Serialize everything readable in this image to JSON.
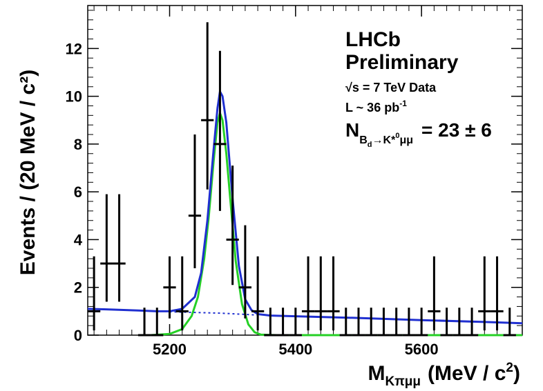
{
  "chart_data": {
    "type": "scatter",
    "title": "",
    "xlabel": {
      "main": "M",
      "sub": "Kπμμ",
      "unit": "(MeV / c",
      "unit_sup": "2",
      "unit_close": ")"
    },
    "ylabel": "Events / (20 MeV / c²)",
    "xlim": [
      5070,
      5760
    ],
    "ylim": [
      0,
      13.8
    ],
    "xticks": [
      "5200",
      "5400",
      "5600"
    ],
    "yticks": [
      "0",
      "2",
      "4",
      "6",
      "8",
      "10",
      "12"
    ],
    "annotations": {
      "experiment": "LHCb",
      "status": "Preliminary",
      "energy": "√s = 7 TeV Data",
      "lumi_prefix": "L ~ 36 pb",
      "lumi_sup": "-1",
      "yield_label": "N",
      "yield_sub": "B",
      "yield_subsub": "d",
      "yield_sub_rest": "→K*",
      "yield_sub_sup": "0",
      "yield_sub_end": "μμ",
      "yield_value": "= 23 ± 6"
    },
    "series": [
      {
        "type": "errorbar",
        "color": "#000000",
        "x": [
          5080,
          5100,
          5120,
          5160,
          5180,
          5200,
          5220,
          5240,
          5260,
          5280,
          5300,
          5320,
          5340,
          5360,
          5380,
          5400,
          5420,
          5440,
          5460,
          5480,
          5500,
          5520,
          5540,
          5560,
          5580,
          5600,
          5620,
          5640,
          5660,
          5680,
          5700,
          5720,
          5740
        ],
        "y": [
          1,
          3,
          3,
          0,
          0,
          2,
          1,
          5,
          9,
          8,
          4,
          2,
          1,
          0,
          0,
          0,
          1,
          1,
          1,
          0,
          0,
          0,
          0,
          0,
          0,
          0,
          1,
          0,
          0,
          0,
          1,
          1,
          0
        ],
        "yerr_up": [
          2.3,
          2.9,
          2.9,
          1.15,
          1.15,
          1.3,
          2.3,
          3.4,
          4.1,
          3.9,
          3.1,
          2.6,
          2.3,
          1.15,
          1.15,
          1.15,
          2.3,
          2.3,
          2.3,
          1.15,
          1.15,
          1.15,
          1.15,
          1.15,
          1.15,
          1.15,
          2.3,
          1.15,
          1.15,
          1.15,
          2.3,
          2.3,
          1.15
        ],
        "yerr_down": [
          0.8,
          1.6,
          1.6,
          0,
          0,
          1.3,
          0.8,
          2.2,
          2.9,
          2.8,
          1.9,
          1.3,
          0.8,
          0,
          0,
          0,
          0.8,
          0.8,
          0.8,
          0,
          0,
          0,
          0,
          0,
          0,
          0,
          0.8,
          0,
          0,
          0,
          0.8,
          0.8,
          0
        ],
        "xerr": 10
      },
      {
        "type": "line",
        "color": "#1f2fd0",
        "x": [
          5070,
          5100,
          5150,
          5180,
          5200,
          5220,
          5240,
          5250,
          5260,
          5270,
          5276,
          5280,
          5284,
          5290,
          5300,
          5310,
          5320,
          5330,
          5340,
          5360,
          5400,
          5500,
          5600,
          5700,
          5760
        ],
        "y": [
          1.1,
          1.08,
          1.03,
          1.0,
          1.0,
          1.1,
          1.6,
          2.6,
          4.8,
          7.8,
          9.5,
          10.2,
          10.0,
          8.9,
          5.7,
          2.9,
          1.5,
          1.05,
          0.88,
          0.82,
          0.79,
          0.72,
          0.63,
          0.55,
          0.5
        ]
      },
      {
        "type": "line",
        "dashed": true,
        "color": "#1f2fd0",
        "x": [
          5200,
          5240,
          5280,
          5320,
          5340
        ],
        "y": [
          0.98,
          0.95,
          0.92,
          0.87,
          0.84
        ]
      },
      {
        "type": "line",
        "color": "#25d025",
        "x": [
          5170,
          5200,
          5220,
          5235,
          5245,
          5255,
          5262,
          5270,
          5276,
          5280,
          5284,
          5290,
          5298,
          5305,
          5315,
          5325,
          5335,
          5345,
          5370,
          5760
        ],
        "y": [
          0,
          0.05,
          0.25,
          0.8,
          1.6,
          3.2,
          4.9,
          7.3,
          8.9,
          9.3,
          9.0,
          7.6,
          5.2,
          3.1,
          1.3,
          0.45,
          0.12,
          0.02,
          0,
          0
        ]
      }
    ]
  }
}
